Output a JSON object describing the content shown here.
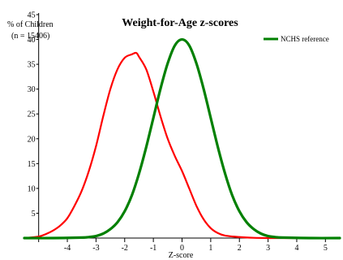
{
  "chart_data": {
    "type": "line",
    "title": "Weight-for-Age z-scores",
    "ylabel": "% of Children",
    "sample_note": "(n = 15406)",
    "xlabel": "Z-score",
    "xlim": [
      -5.5,
      5.5
    ],
    "ylim": [
      0,
      45
    ],
    "x_ticks": [
      -5,
      -4,
      -3,
      -2,
      -1,
      0,
      1,
      2,
      3,
      4,
      5
    ],
    "x_tick_labels": [
      "",
      "-4",
      "-3",
      "-2",
      "-1",
      "0",
      "1",
      "2",
      "3",
      "4",
      "5"
    ],
    "y_ticks": [
      0,
      5,
      10,
      15,
      20,
      25,
      30,
      35,
      40,
      45
    ],
    "y_tick_labels": [
      "",
      "5",
      "10",
      "15",
      "20",
      "25",
      "30",
      "35",
      "40",
      "45"
    ],
    "legend_position": "top-right",
    "series": [
      {
        "color": "#ff0000",
        "x": [
          -5.5,
          -5.0,
          -4.75,
          -4.5,
          -4.25,
          -4.0,
          -3.75,
          -3.5,
          -3.25,
          -3.0,
          -2.75,
          -2.5,
          -2.25,
          -2.0,
          -1.75,
          -1.6,
          -1.5,
          -1.25,
          -1.0,
          -0.75,
          -0.5,
          -0.25,
          0.0,
          0.25,
          0.5,
          0.75,
          1.0,
          1.25,
          1.5,
          2.0,
          2.5,
          3.0,
          3.5,
          4.0,
          4.5,
          5.0,
          5.5
        ],
        "y": [
          0.0,
          0.3,
          0.8,
          1.5,
          2.5,
          4.0,
          6.5,
          9.5,
          13.5,
          18.5,
          24.5,
          30.0,
          34.0,
          36.3,
          37.0,
          37.3,
          36.5,
          34.0,
          29.5,
          24.5,
          20.0,
          16.5,
          13.5,
          10.0,
          6.5,
          3.8,
          2.0,
          1.0,
          0.5,
          0.2,
          0.05,
          0.0,
          0.0,
          0.0,
          0.0,
          0.0,
          0.0
        ]
      },
      {
        "name": "NCHS reference",
        "color": "#008000",
        "x": [
          -5.5,
          -4.5,
          -3.5,
          -3.25,
          -3.0,
          -2.75,
          -2.5,
          -2.25,
          -2.0,
          -1.75,
          -1.5,
          -1.25,
          -1.0,
          -0.75,
          -0.5,
          -0.25,
          0.0,
          0.25,
          0.5,
          0.75,
          1.0,
          1.25,
          1.5,
          1.75,
          2.0,
          2.25,
          2.5,
          2.75,
          3.0,
          3.25,
          3.5,
          4.5,
          5.5
        ],
        "y": [
          0.0,
          0.0,
          0.1,
          0.2,
          0.4,
          0.9,
          1.8,
          3.2,
          5.4,
          8.6,
          13.0,
          18.3,
          24.2,
          30.1,
          35.2,
          38.8,
          40.0,
          38.8,
          35.2,
          30.1,
          24.2,
          18.3,
          13.0,
          8.6,
          5.4,
          3.2,
          1.8,
          0.9,
          0.4,
          0.2,
          0.1,
          0.0,
          0.0
        ]
      }
    ]
  }
}
